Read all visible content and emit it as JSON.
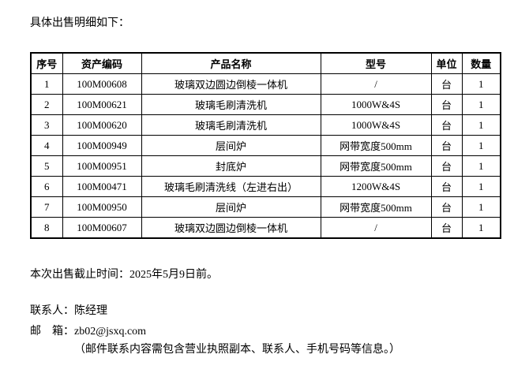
{
  "colors": {
    "text": "#000000",
    "background": "#ffffff",
    "table_border": "#000000"
  },
  "intro": "具体出售明细如下：",
  "table": {
    "headers": [
      "序号",
      "资产编码",
      "产品名称",
      "型号",
      "单位",
      "数量"
    ],
    "rows": [
      [
        "1",
        "100M00608",
        "玻璃双边圆边倒棱一体机",
        "/",
        "台",
        "1"
      ],
      [
        "2",
        "100M00621",
        "玻璃毛刷清洗机",
        "1000W&4S",
        "台",
        "1"
      ],
      [
        "3",
        "100M00620",
        "玻璃毛刷清洗机",
        "1000W&4S",
        "台",
        "1"
      ],
      [
        "4",
        "100M00949",
        "层间炉",
        "网带宽度500mm",
        "台",
        "1"
      ],
      [
        "5",
        "100M00951",
        "封底炉",
        "网带宽度500mm",
        "台",
        "1"
      ],
      [
        "6",
        "100M00471",
        "玻璃毛刷清洗线（左进右出）",
        "1200W&4S",
        "台",
        "1"
      ],
      [
        "7",
        "100M00950",
        "层间炉",
        "网带宽度500mm",
        "台",
        "1"
      ],
      [
        "8",
        "100M00607",
        "玻璃双边圆边倒棱一体机",
        "/",
        "台",
        "1"
      ]
    ]
  },
  "footer": {
    "deadline": "本次出售截止时间：2025年5月9日前。",
    "contact_label": "联系人：",
    "contact_name": "陈经理",
    "email_label": "邮　箱：",
    "email_address": "zb02@jsxq.com",
    "email_note": "（邮件联系内容需包含营业执照副本、联系人、手机号码等信息。）"
  }
}
